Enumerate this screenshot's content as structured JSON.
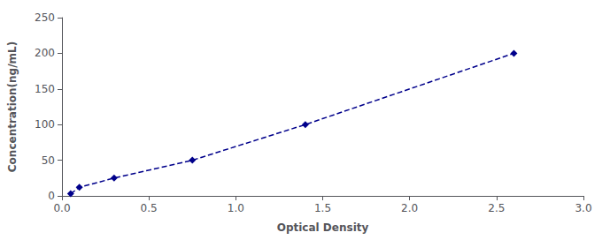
{
  "chart_data": {
    "type": "line",
    "x": [
      0.05,
      0.1,
      0.3,
      0.75,
      1.4,
      2.6
    ],
    "values": [
      3,
      12,
      25,
      50,
      100,
      200
    ],
    "color": "#00008B",
    "marker": "diamond",
    "line_style": "dashed",
    "xlabel": "Optical Density",
    "ylabel": "Concentration(ng/mL)",
    "xlim": [
      0,
      3
    ],
    "ylim": [
      0,
      250
    ],
    "xticks": [
      {
        "value": 0,
        "label": "0.0"
      },
      0.5,
      {
        "value": 1,
        "label": "1.0"
      },
      1.5,
      {
        "value": 2,
        "label": "2.0"
      },
      2.5,
      {
        "value": 3,
        "label": "3.0"
      }
    ],
    "yticks": [
      0,
      50,
      100,
      150,
      200,
      250
    ],
    "grid": false
  }
}
